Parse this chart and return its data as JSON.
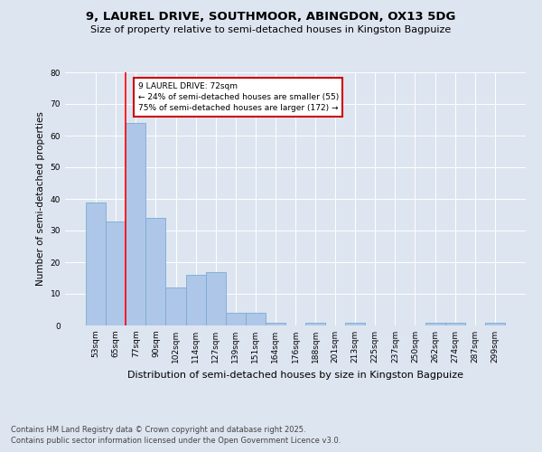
{
  "title": "9, LAUREL DRIVE, SOUTHMOOR, ABINGDON, OX13 5DG",
  "subtitle": "Size of property relative to semi-detached houses in Kingston Bagpuize",
  "xlabel": "Distribution of semi-detached houses by size in Kingston Bagpuize",
  "ylabel": "Number of semi-detached properties",
  "bar_labels": [
    "53sqm",
    "65sqm",
    "77sqm",
    "90sqm",
    "102sqm",
    "114sqm",
    "127sqm",
    "139sqm",
    "151sqm",
    "164sqm",
    "176sqm",
    "188sqm",
    "201sqm",
    "213sqm",
    "225sqm",
    "237sqm",
    "250sqm",
    "262sqm",
    "274sqm",
    "287sqm",
    "299sqm"
  ],
  "bar_values": [
    39,
    33,
    64,
    34,
    12,
    16,
    17,
    4,
    4,
    1,
    0,
    1,
    0,
    1,
    0,
    0,
    0,
    1,
    1,
    0,
    1
  ],
  "bar_color": "#aec6e8",
  "bar_edge_color": "#7aacd4",
  "property_size": "72sqm",
  "pct_smaller": 24,
  "pct_larger": 75,
  "n_smaller": 55,
  "n_larger": 172,
  "annotation_box_color": "#cc0000",
  "ylim": [
    0,
    80
  ],
  "yticks": [
    0,
    10,
    20,
    30,
    40,
    50,
    60,
    70,
    80
  ],
  "footnote1": "Contains HM Land Registry data © Crown copyright and database right 2025.",
  "footnote2": "Contains public sector information licensed under the Open Government Licence v3.0.",
  "bg_color": "#dde5f0",
  "plot_bg_color": "#dde5f0"
}
